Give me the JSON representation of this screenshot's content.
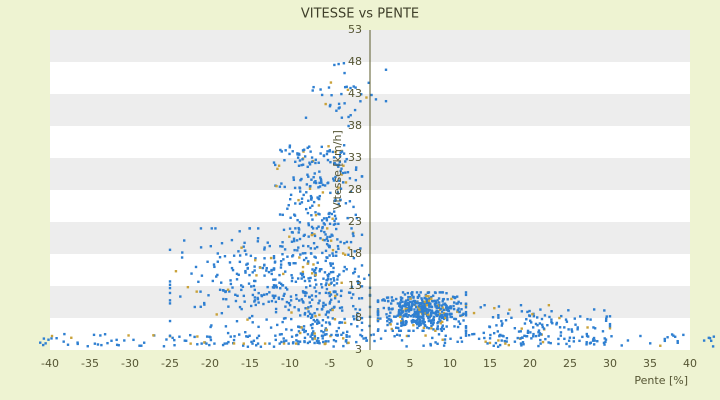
{
  "chart_data": {
    "type": "scatter",
    "title": "VITESSE vs PENTE",
    "xlabel": "Pente [%]",
    "ylabel": "Vitesse [km/h]",
    "xlim": [
      -40,
      40
    ],
    "ylim": [
      3,
      53
    ],
    "x_ticks": [
      -40,
      -35,
      -30,
      -25,
      -20,
      -15,
      -10,
      -5,
      0,
      5,
      10,
      15,
      20,
      25,
      30,
      35,
      40
    ],
    "y_ticks": [
      3,
      8,
      13,
      18,
      23,
      28,
      33,
      38,
      43,
      48,
      53
    ],
    "grid": "horizontal alternating bands",
    "legend": "none",
    "point_count_estimate": 1800,
    "clusters": [
      {
        "name": "",
        "x_range": [
          -42,
          45
        ],
        "y_range": [
          3.5,
          5.5
        ],
        "count": 220,
        "description_values": "near-floor band"
      },
      {
        "name": "",
        "x_range": [
          1,
          12
        ],
        "y_range": [
          6,
          12
        ],
        "count": 520
      },
      {
        "name": "",
        "x_range": [
          -12,
          -1
        ],
        "y_range": [
          4,
          35
        ],
        "count": 520
      },
      {
        "name": "",
        "x_range": [
          -25,
          0
        ],
        "y_range": [
          4,
          22
        ],
        "count": 300
      },
      {
        "name": "",
        "x_range": [
          12,
          30
        ],
        "y_range": [
          4,
          10
        ],
        "count": 120
      },
      {
        "name": "",
        "x_range": [
          -8,
          2
        ],
        "y_range": [
          38,
          49
        ],
        "count": 40
      }
    ],
    "colors": {
      "point_primary": "#2e7fd1",
      "point_secondary": "#c9a23a",
      "band_light": "#ffffff",
      "band_shade": "#ededed",
      "axis_line": "#5a5a2a"
    }
  }
}
